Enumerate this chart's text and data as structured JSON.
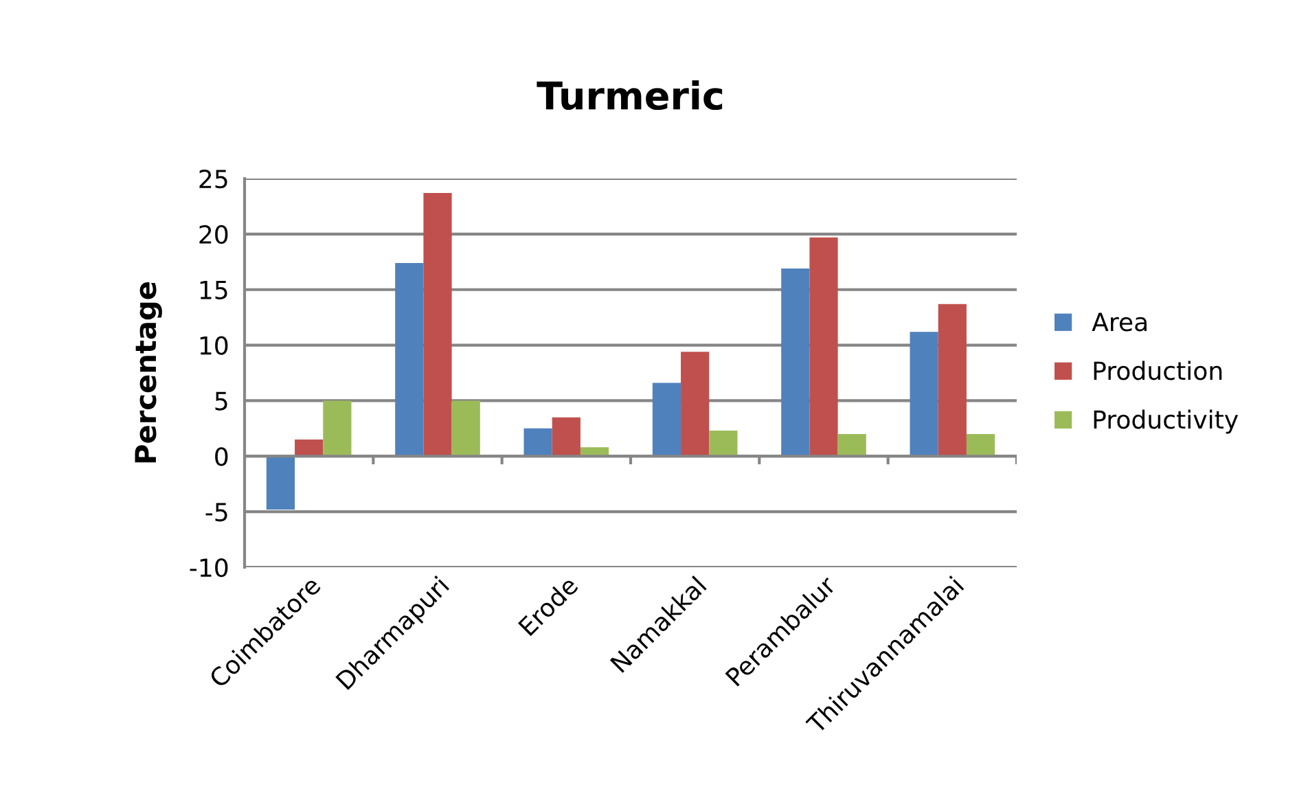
{
  "chart_data": {
    "type": "bar",
    "title": "Turmeric",
    "ylabel": "Percentage",
    "categories": [
      "Coimbatore",
      "Dharmapuri",
      "Erode",
      "Namakkal",
      "Perambalur",
      "Thiruvannamalai"
    ],
    "series": [
      {
        "name": "Area",
        "color": "#4f81bd",
        "values": [
          -4.8,
          17.4,
          2.5,
          6.6,
          16.9,
          11.2
        ]
      },
      {
        "name": "Production",
        "color": "#c0504d",
        "values": [
          1.5,
          23.7,
          3.5,
          9.4,
          19.7,
          13.7
        ]
      },
      {
        "name": "Productivity",
        "color": "#9bbb59",
        "values": [
          5.0,
          5.0,
          0.8,
          2.3,
          2.0,
          2.0
        ]
      }
    ],
    "ylim": [
      -10,
      25
    ],
    "yticks": [
      -10,
      -5,
      0,
      5,
      10,
      15,
      20,
      25
    ],
    "grid": "y",
    "legend": "right"
  }
}
